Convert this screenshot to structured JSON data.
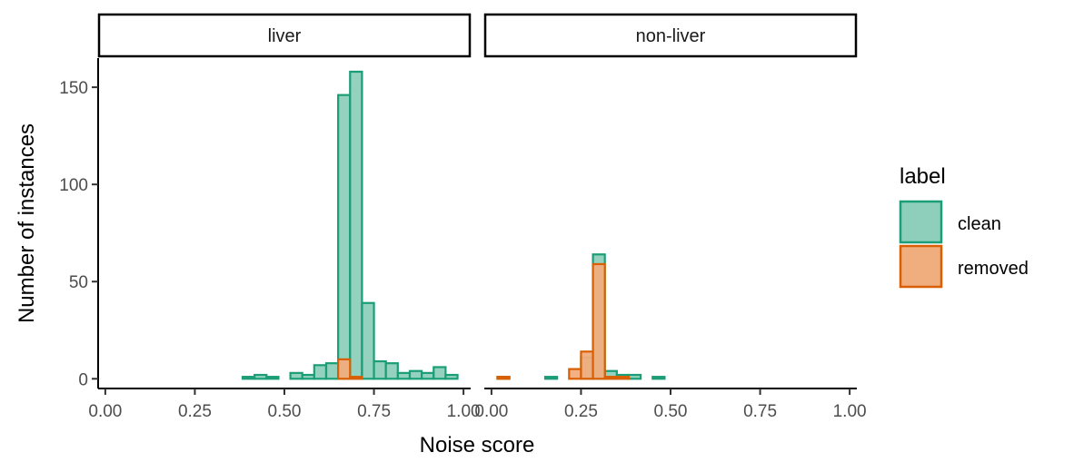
{
  "chart_data": {
    "type": "histogram",
    "xlabel": "Noise score",
    "ylabel": "Number of instances",
    "xlim": [
      -0.02,
      1.02
    ],
    "ylim": [
      -5,
      165
    ],
    "x_ticks": [
      0.0,
      0.25,
      0.5,
      0.75,
      1.0
    ],
    "x_tick_labels": [
      "0.00",
      "0.25",
      "0.50",
      "0.75",
      "1.00"
    ],
    "y_ticks": [
      0,
      50,
      100,
      150
    ],
    "y_tick_labels": [
      "0",
      "50",
      "100",
      "150"
    ],
    "bin_width": 0.0333,
    "bin_starts": [
      0.0167,
      0.05,
      0.0833,
      0.1167,
      0.15,
      0.1833,
      0.2167,
      0.25,
      0.2833,
      0.3167,
      0.35,
      0.3833,
      0.4167,
      0.45,
      0.4833,
      0.5167,
      0.55,
      0.5833,
      0.6167,
      0.65,
      0.6833,
      0.7167,
      0.75,
      0.7833,
      0.8167,
      0.85,
      0.8833,
      0.9167,
      0.95,
      0.9833
    ],
    "legend": {
      "title": "label",
      "position": "right",
      "entries": [
        {
          "name": "clean",
          "fill": "#8ecfbb",
          "stroke": "#1b9e77"
        },
        {
          "name": "removed",
          "fill": "#f0ad7d",
          "stroke": "#d95f02"
        }
      ]
    },
    "facets": [
      {
        "label": "liver",
        "series": [
          {
            "name": "clean",
            "values": [
              0,
              0,
              0,
              0,
              0,
              0,
              0,
              0,
              0,
              0,
              0,
              1,
              2,
              1,
              0,
              3,
              2,
              7,
              8,
              146,
              158,
              39,
              9,
              8,
              3,
              4,
              3,
              6,
              2,
              0
            ]
          },
          {
            "name": "removed",
            "values": [
              0,
              0,
              0,
              0,
              0,
              0,
              0,
              0,
              0,
              0,
              0,
              0,
              0,
              0,
              0,
              0,
              0,
              0,
              0,
              10,
              1,
              0,
              0,
              0,
              0,
              0,
              0,
              0,
              0,
              0
            ]
          }
        ]
      },
      {
        "label": "non-liver",
        "series": [
          {
            "name": "clean",
            "values": [
              1,
              0,
              0,
              0,
              1,
              0,
              0,
              11,
              64,
              4,
              2,
              2,
              0,
              1,
              0,
              0,
              0,
              0,
              0,
              0,
              0,
              0,
              0,
              0,
              0,
              0,
              0,
              0,
              0,
              0
            ]
          },
          {
            "name": "removed",
            "values": [
              1,
              0,
              0,
              0,
              0,
              0,
              5,
              14,
              59,
              1,
              1,
              0,
              0,
              0,
              0,
              0,
              0,
              0,
              0,
              0,
              0,
              0,
              0,
              0,
              0,
              0,
              0,
              0,
              0,
              0
            ]
          }
        ]
      }
    ]
  },
  "colors": {
    "clean_fill": "#8ecfbb",
    "clean_stroke": "#1b9e77",
    "removed_fill": "#f0ad7d",
    "removed_stroke": "#d95f02"
  }
}
